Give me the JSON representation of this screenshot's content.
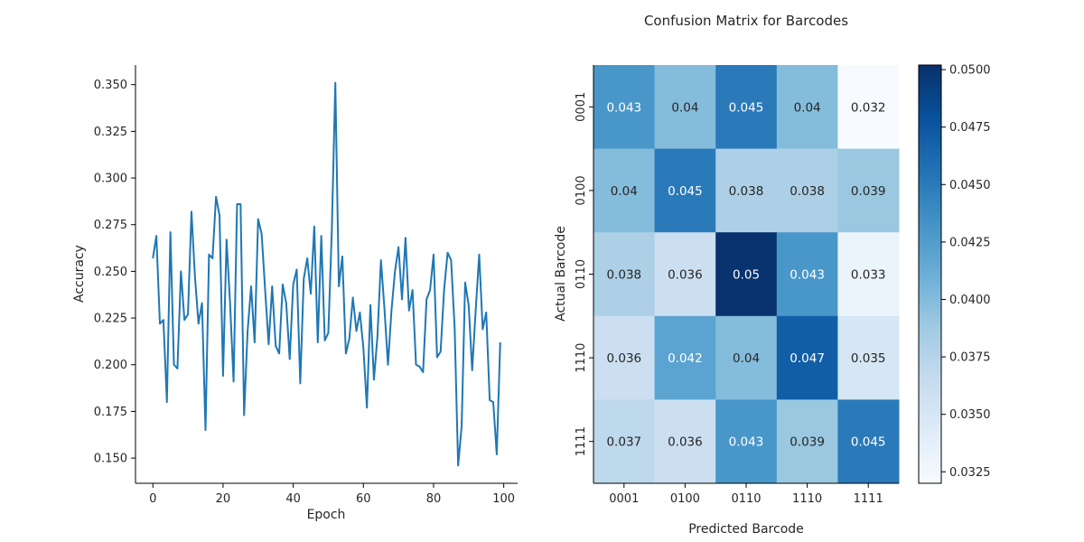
{
  "figure_title": "Confusion Matrix for Barcodes",
  "chart_data": [
    {
      "type": "line",
      "title": "",
      "xlabel": "Epoch",
      "ylabel": "Accuracy",
      "xlim": [
        -4.95,
        103.95
      ],
      "ylim": [
        0.1365,
        0.3605
      ],
      "grid": false,
      "line_color": "#1f77b4",
      "xticks": [
        0,
        20,
        40,
        60,
        80,
        100
      ],
      "yticks": [
        0.15,
        0.175,
        0.2,
        0.225,
        0.25,
        0.275,
        0.3,
        0.325,
        0.35
      ],
      "ytick_labels": [
        "0.150",
        "0.175",
        "0.200",
        "0.225",
        "0.250",
        "0.275",
        "0.300",
        "0.325",
        "0.350"
      ],
      "x": [
        0,
        1,
        2,
        3,
        4,
        5,
        6,
        7,
        8,
        9,
        10,
        11,
        12,
        13,
        14,
        15,
        16,
        17,
        18,
        19,
        20,
        21,
        22,
        23,
        24,
        25,
        26,
        27,
        28,
        29,
        30,
        31,
        32,
        33,
        34,
        35,
        36,
        37,
        38,
        39,
        40,
        41,
        42,
        43,
        44,
        45,
        46,
        47,
        48,
        49,
        50,
        51,
        52,
        53,
        54,
        55,
        56,
        57,
        58,
        59,
        60,
        61,
        62,
        63,
        64,
        65,
        66,
        67,
        68,
        69,
        70,
        71,
        72,
        73,
        74,
        75,
        76,
        77,
        78,
        79,
        80,
        81,
        82,
        83,
        84,
        85,
        86,
        87,
        88,
        89,
        90,
        91,
        92,
        93,
        94,
        95,
        96,
        97,
        98,
        99
      ],
      "series": [
        {
          "values": [
            0.257,
            0.269,
            0.222,
            0.224,
            0.18,
            0.271,
            0.2,
            0.198,
            0.25,
            0.224,
            0.227,
            0.282,
            0.247,
            0.222,
            0.233,
            0.165,
            0.259,
            0.257,
            0.29,
            0.28,
            0.194,
            0.267,
            0.233,
            0.191,
            0.286,
            0.286,
            0.173,
            0.218,
            0.242,
            0.212,
            0.278,
            0.27,
            0.24,
            0.211,
            0.242,
            0.21,
            0.206,
            0.243,
            0.233,
            0.203,
            0.243,
            0.251,
            0.19,
            0.246,
            0.257,
            0.238,
            0.274,
            0.212,
            0.269,
            0.213,
            0.217,
            0.272,
            0.351,
            0.242,
            0.258,
            0.206,
            0.214,
            0.236,
            0.218,
            0.228,
            0.209,
            0.177,
            0.232,
            0.192,
            0.215,
            0.256,
            0.23,
            0.2,
            0.229,
            0.25,
            0.263,
            0.235,
            0.268,
            0.229,
            0.24,
            0.2,
            0.199,
            0.196,
            0.235,
            0.24,
            0.259,
            0.204,
            0.207,
            0.24,
            0.26,
            0.256,
            0.22,
            0.146,
            0.167,
            0.244,
            0.232,
            0.197,
            0.229,
            0.259,
            0.219,
            0.228,
            0.181,
            0.18,
            0.152,
            0.212
          ]
        }
      ]
    },
    {
      "type": "heatmap",
      "title": "Confusion Matrix for Barcodes",
      "xlabel": "Predicted Barcode",
      "ylabel": "Actual Barcode",
      "x_categories": [
        "0001",
        "0100",
        "0110",
        "1110",
        "1111"
      ],
      "y_categories": [
        "0001",
        "0100",
        "0110",
        "1110",
        "1111"
      ],
      "values": [
        [
          0.043,
          0.04,
          0.045,
          0.04,
          0.032
        ],
        [
          0.04,
          0.045,
          0.038,
          0.038,
          0.039
        ],
        [
          0.038,
          0.036,
          0.05,
          0.043,
          0.033
        ],
        [
          0.036,
          0.042,
          0.04,
          0.047,
          0.035
        ],
        [
          0.037,
          0.036,
          0.043,
          0.039,
          0.045
        ]
      ],
      "cell_labels": [
        [
          "0.043",
          "0.04",
          "0.045",
          "0.04",
          "0.032"
        ],
        [
          "0.04",
          "0.045",
          "0.038",
          "0.038",
          "0.039"
        ],
        [
          "0.038",
          "0.036",
          "0.05",
          "0.043",
          "0.033"
        ],
        [
          "0.036",
          "0.042",
          "0.04",
          "0.047",
          "0.035"
        ],
        [
          "0.037",
          "0.036",
          "0.043",
          "0.039",
          "0.045"
        ]
      ],
      "colormap": "Blues",
      "colormap_stops": [
        "#f7fbff",
        "#deebf7",
        "#c6dbef",
        "#9ecae1",
        "#6baed6",
        "#4292c6",
        "#2171b5",
        "#08519c",
        "#08306b"
      ],
      "colorbar_range": [
        0.032,
        0.0502
      ],
      "colorbar_ticks": [
        0.0325,
        0.035,
        0.0375,
        0.04,
        0.0425,
        0.045,
        0.0475,
        0.05
      ],
      "colorbar_tick_labels": [
        "0.0325",
        "0.0350",
        "0.0375",
        "0.0400",
        "0.0425",
        "0.0450",
        "0.0475",
        "0.0500"
      ]
    }
  ]
}
